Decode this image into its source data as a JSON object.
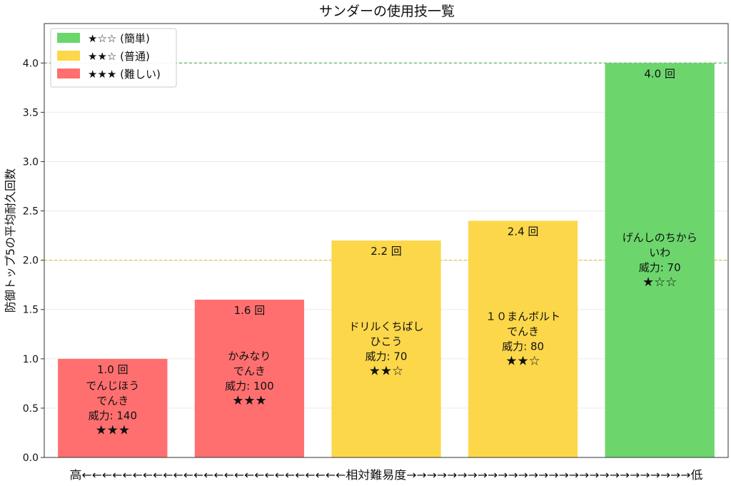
{
  "chart_data": {
    "type": "bar",
    "title": "サンダーの使用技一覧",
    "ylabel": "防御トップ5の平均耐久回数",
    "xlabel": "高←←←←←←←←←←←←←←←←←←←←←←←←←←相対難易度→→→→→→→→→→→→→→→→→→→→→→→→→→→→低",
    "ylim": [
      0,
      4.4
    ],
    "yticks": [
      "0.0",
      "0.5",
      "1.0",
      "1.5",
      "2.0",
      "2.5",
      "3.0",
      "3.5",
      "4.0"
    ],
    "grid": true,
    "legend_position": "top-left",
    "difficulty_colors": {
      "easy": "#6cd66c",
      "normal": "#fcd74a",
      "hard": "#ff6f6f"
    },
    "legend": [
      {
        "label": "★☆☆ (簡単)",
        "level": "easy"
      },
      {
        "label": "★★☆ (普通)",
        "level": "normal"
      },
      {
        "label": "★★★ (難しい)",
        "level": "hard"
      }
    ],
    "reference_lines": [
      {
        "value": 4.0,
        "level": "easy"
      },
      {
        "value": 2.0,
        "level": "normal"
      }
    ],
    "bars": [
      {
        "value": 1.0,
        "value_label": "1.0 回",
        "level": "hard",
        "lines": [
          "でんじほう",
          "でんき",
          "威力: 140",
          "★★★"
        ]
      },
      {
        "value": 1.6,
        "value_label": "1.6 回",
        "level": "hard",
        "lines": [
          "かみなり",
          "でんき",
          "威力: 100",
          "★★★"
        ]
      },
      {
        "value": 2.2,
        "value_label": "2.2 回",
        "level": "normal",
        "lines": [
          "ドリルくちばし",
          "ひこう",
          "威力: 70",
          "★★☆"
        ]
      },
      {
        "value": 2.4,
        "value_label": "2.4 回",
        "level": "normal",
        "lines": [
          "１０まんボルト",
          "でんき",
          "威力: 80",
          "★★☆"
        ]
      },
      {
        "value": 4.0,
        "value_label": "4.0 回",
        "level": "easy",
        "lines": [
          "げんしのちから",
          "いわ",
          "威力: 70",
          "★☆☆"
        ]
      }
    ]
  }
}
